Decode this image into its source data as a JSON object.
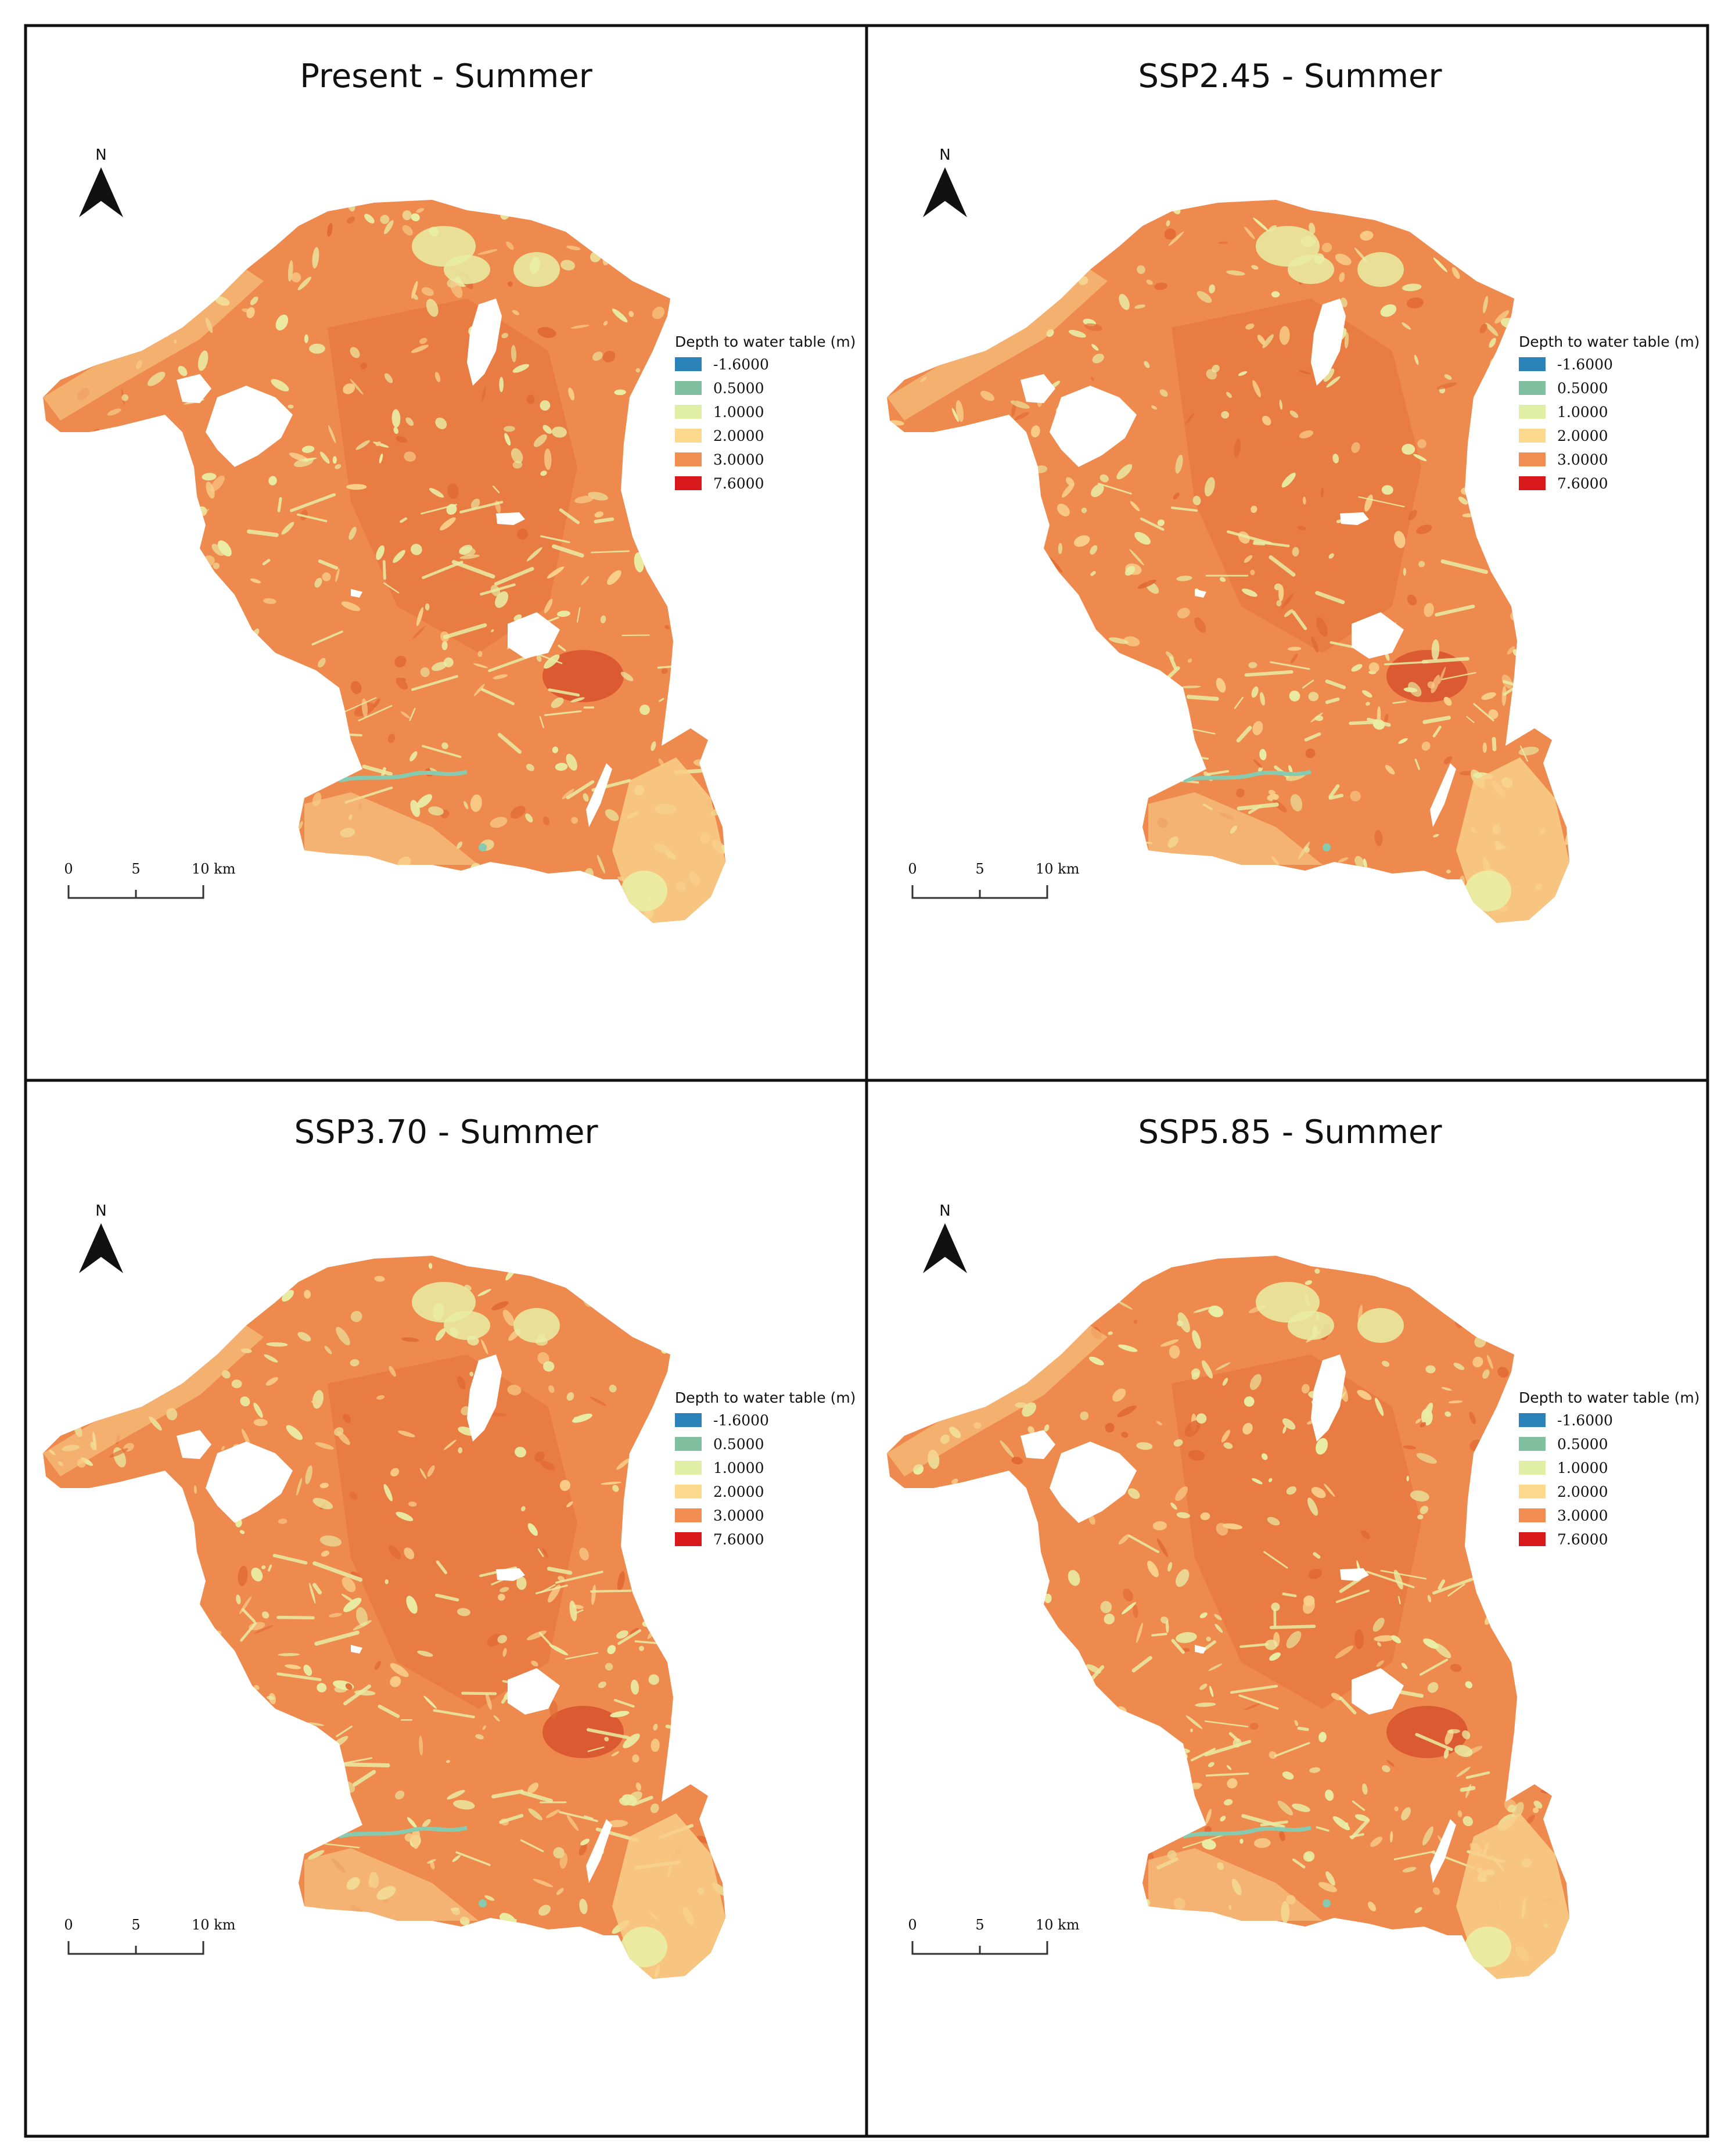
{
  "panels": [
    {
      "title": "Present - Summer"
    },
    {
      "title": "SSP2.45 - Summer"
    },
    {
      "title": "SSP3.70 - Summer"
    },
    {
      "title": "SSP5.85 - Summer"
    }
  ],
  "legend": {
    "title": "Depth to water table (m)",
    "items": [
      {
        "label": "-1.6000",
        "color": "#2b83ba"
      },
      {
        "label": "0.5000",
        "color": "#80bf9f"
      },
      {
        "label": "1.0000",
        "color": "#dff0a6"
      },
      {
        "label": "2.0000",
        "color": "#fdd98e"
      },
      {
        "label": "3.0000",
        "color": "#f28d52"
      },
      {
        "label": "7.6000",
        "color": "#d7191c"
      }
    ]
  },
  "north_arrow": {
    "letter": "N",
    "icon": "north-arrow-icon"
  },
  "scale_bar": {
    "ticks": [
      "0",
      "5",
      "10 km"
    ]
  },
  "colors": {
    "land_base": "#ee8a4e",
    "land_dark": "#e16a35",
    "land_darkest": "#d44a2a",
    "wetland_light": "#e9eda4",
    "wetland_yellow": "#f9cf8a",
    "channel_teal": "#86cbb0",
    "frame": "#111111"
  }
}
